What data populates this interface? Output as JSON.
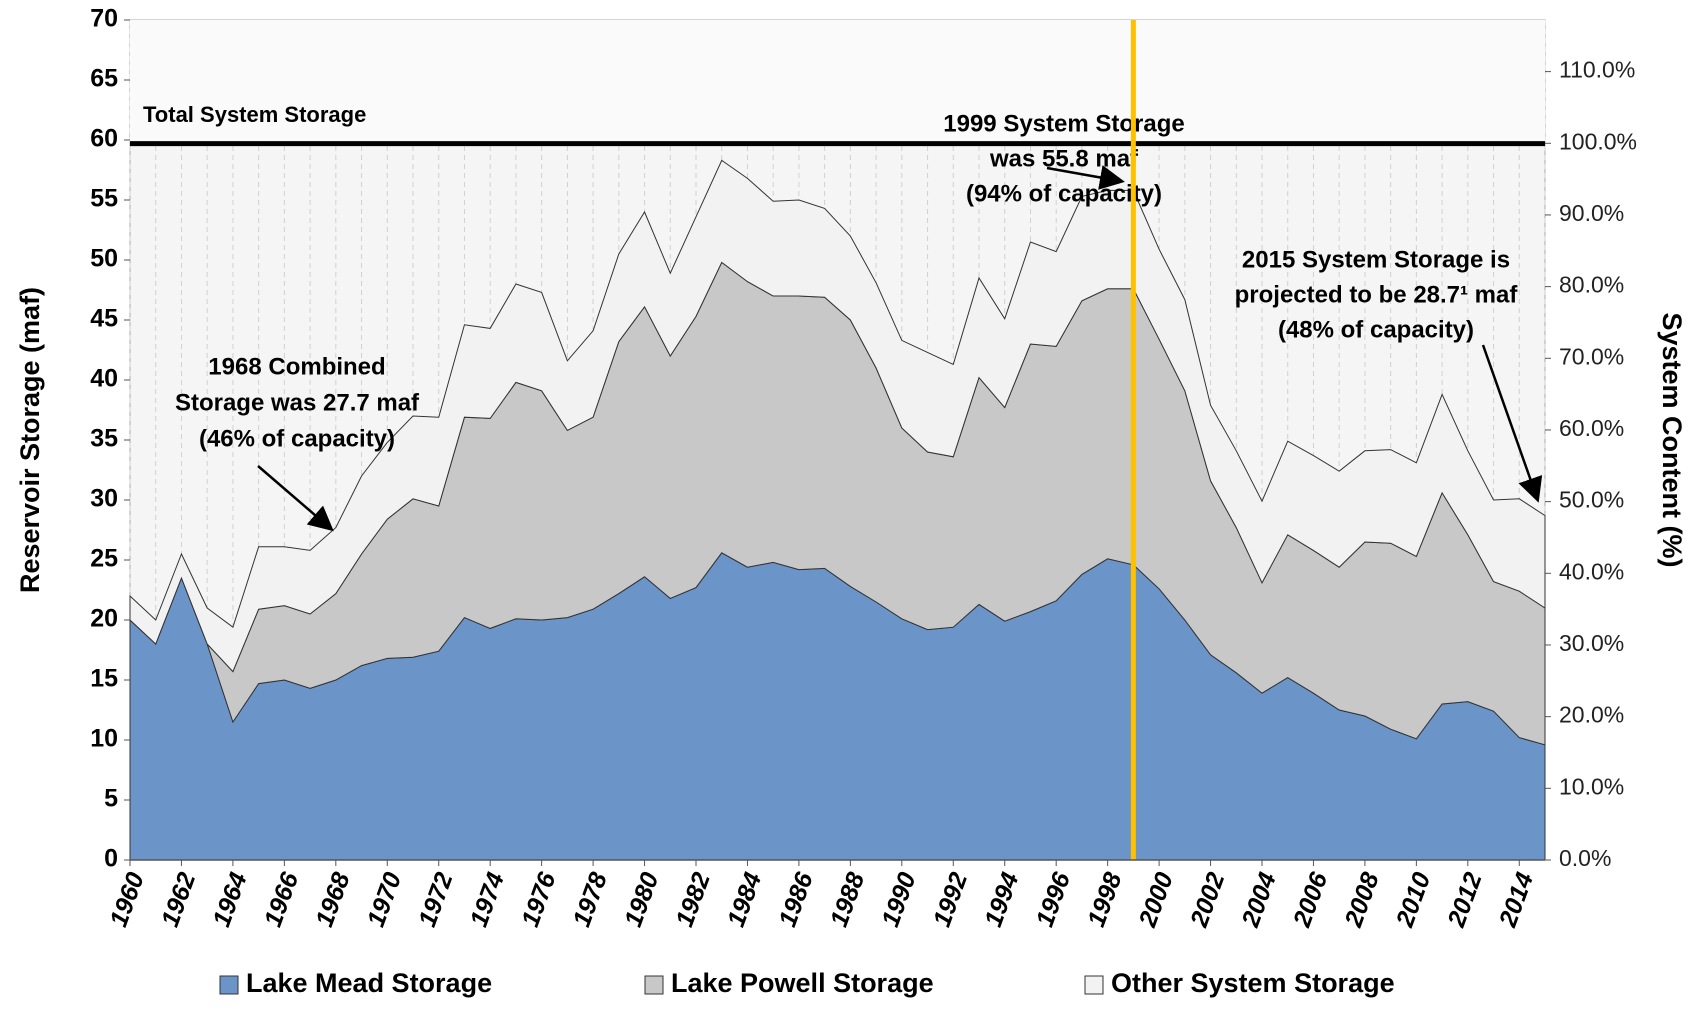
{
  "chart_data": {
    "type": "stacked_area",
    "y_title": "Reservoir Storage (maf)",
    "y2_title": "System Content  (%)",
    "x": [
      1960,
      1961,
      1962,
      1963,
      1964,
      1965,
      1966,
      1967,
      1968,
      1969,
      1970,
      1971,
      1972,
      1973,
      1974,
      1975,
      1976,
      1977,
      1978,
      1979,
      1980,
      1981,
      1982,
      1983,
      1984,
      1985,
      1986,
      1987,
      1988,
      1989,
      1990,
      1991,
      1992,
      1993,
      1994,
      1995,
      1996,
      1997,
      1998,
      1999,
      2000,
      2001,
      2002,
      2003,
      2004,
      2005,
      2006,
      2007,
      2008,
      2009,
      2010,
      2011,
      2012,
      2013,
      2014,
      2015
    ],
    "series": [
      {
        "name": "Lake Mead Storage",
        "color": "#6b95c9",
        "values": [
          20,
          18,
          23.5,
          18,
          11.5,
          14.7,
          15,
          14.3,
          15,
          16.2,
          16.8,
          16.9,
          17.4,
          20.2,
          19.3,
          20.1,
          20,
          20.2,
          20.9,
          22.2,
          23.6,
          21.8,
          22.7,
          25.6,
          24.4,
          24.8,
          24.2,
          24.3,
          22.8,
          21.5,
          20.1,
          19.2,
          19.4,
          21.3,
          19.9,
          20.7,
          21.6,
          23.8,
          25.1,
          24.6,
          22.6,
          20,
          17.1,
          15.6,
          13.9,
          15.2,
          13.9,
          12.5,
          12,
          10.9,
          10.1,
          13,
          13.2,
          12.4,
          10.2,
          9.6
        ]
      },
      {
        "name": "Lake Powell Storage",
        "color": "#c8c8c8",
        "values": [
          0,
          0,
          0,
          0,
          4.2,
          6.2,
          6.2,
          6.2,
          7.2,
          9.3,
          11.6,
          13.2,
          12.1,
          16.7,
          17.5,
          19.7,
          19.1,
          15.6,
          16,
          21,
          22.5,
          20.2,
          22.6,
          24.2,
          23.8,
          22.2,
          22.8,
          22.6,
          22.2,
          19.5,
          15.9,
          14.8,
          14.2,
          18.9,
          17.8,
          22.3,
          21.2,
          22.8,
          22.5,
          23,
          20.8,
          19.1,
          14.5,
          12.1,
          9.2,
          11.9,
          11.9,
          11.9,
          14.5,
          15.5,
          15.2,
          17.6,
          13.9,
          10.8,
          12.2,
          11.4
        ]
      },
      {
        "name": "Other System Storage",
        "color": "#f2f2f2",
        "values": [
          2,
          2,
          2,
          3,
          3.7,
          5.2,
          4.9,
          5.3,
          5.5,
          6.5,
          6.4,
          6.9,
          7.4,
          7.7,
          7.5,
          8.2,
          8.2,
          5.8,
          7.2,
          7.3,
          7.9,
          6.9,
          8.3,
          8.5,
          8.6,
          7.9,
          8,
          7.4,
          7,
          7.1,
          7.3,
          8.3,
          7.7,
          8.3,
          7.4,
          8.5,
          7.9,
          8.7,
          8.2,
          8.2,
          7.5,
          7.6,
          6.3,
          6.4,
          6.8,
          7.8,
          7.9,
          8,
          7.6,
          7.8,
          7.8,
          8.2,
          7,
          6.8,
          7.7,
          7.7
        ]
      }
    ],
    "xlim": [
      1960,
      2015
    ],
    "xticks": [
      1960,
      1962,
      1964,
      1966,
      1968,
      1970,
      1972,
      1974,
      1976,
      1978,
      1980,
      1982,
      1984,
      1986,
      1988,
      1990,
      1992,
      1994,
      1996,
      1998,
      2000,
      2002,
      2004,
      2006,
      2008,
      2010,
      2012,
      2014
    ],
    "ylim": [
      0,
      70
    ],
    "yticks": [
      0,
      5,
      10,
      15,
      20,
      25,
      30,
      35,
      40,
      45,
      50,
      55,
      60,
      65,
      70
    ],
    "y2lim": [
      0,
      117.2
    ],
    "y2ticks": [
      {
        "value": 0,
        "label": "0.0%"
      },
      {
        "value": 10,
        "label": "10.0%"
      },
      {
        "value": 20,
        "label": "20.0%"
      },
      {
        "value": 30,
        "label": "30.0%"
      },
      {
        "value": 40,
        "label": "40.0%"
      },
      {
        "value": 50,
        "label": "50.0%"
      },
      {
        "value": 60,
        "label": "60.0%"
      },
      {
        "value": 70,
        "label": "70.0%"
      },
      {
        "value": 80,
        "label": "80.0%"
      },
      {
        "value": 90,
        "label": "90.0%"
      },
      {
        "value": 100,
        "label": "100.0%"
      },
      {
        "value": 110,
        "label": "110.0%"
      }
    ],
    "grid": true,
    "capacity": 59.7,
    "capacity_label": "Total System Storage",
    "highlight_x": 1999,
    "highlight_color": "#ffc000",
    "legend": "bottom",
    "annotations": [
      [
        "1968 Combined",
        "Storage was 27.7 maf",
        "(46% of capacity)"
      ],
      [
        "1999 System Storage",
        "was 55.8 maf",
        "(94% of capacity)"
      ],
      [
        "2015 System Storage is",
        "projected to be 28.7¹ maf",
        "(48% of capacity)"
      ]
    ]
  }
}
